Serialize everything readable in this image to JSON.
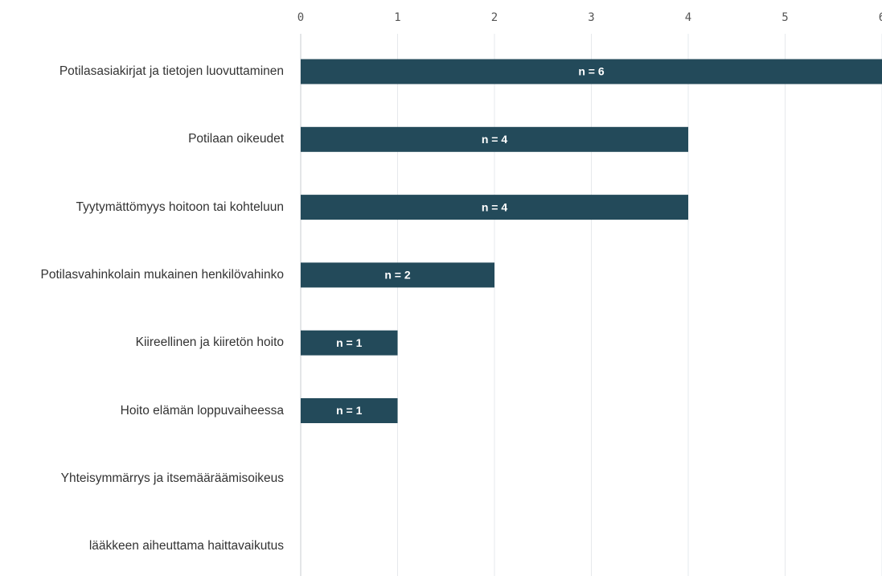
{
  "chart_data": {
    "type": "bar",
    "orientation": "horizontal",
    "categories": [
      "Potilasasiakirjat ja tietojen luovuttaminen",
      "Potilaan oikeudet",
      "Tyytymättömyys hoitoon tai kohteluun",
      "Potilasvahinkolain mukainen henkilövahinko",
      "Kiireellinen ja kiiretön hoito",
      "Hoito elämän loppuvaiheessa",
      "Yhteisymmärrys ja itsemääräämisoikeus",
      "lääkkeen aiheuttama haittavaikutus"
    ],
    "values": [
      6,
      4,
      4,
      2,
      1,
      1,
      0,
      0
    ],
    "value_labels": [
      "n = 6",
      "n = 4",
      "n = 4",
      "n = 2",
      "n = 1",
      "n = 1",
      null,
      null
    ],
    "color": "#234a5a",
    "xlim": [
      0,
      6
    ],
    "xticks": [
      0,
      1,
      2,
      3,
      4,
      5,
      6
    ],
    "grid": true
  }
}
